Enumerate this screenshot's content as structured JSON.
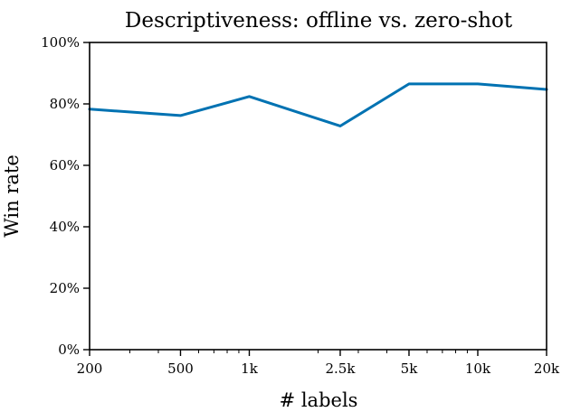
{
  "chart_data": {
    "type": "line",
    "title": "Descriptiveness: offline vs. zero-shot",
    "xlabel": "# labels",
    "ylabel": "Win rate",
    "xscale": "log",
    "x": [
      200,
      500,
      1000,
      2500,
      5000,
      10000,
      20000
    ],
    "x_tick_labels": [
      "200",
      "500",
      "1k",
      "2.5k",
      "5k",
      "10k",
      "20k"
    ],
    "xlim": [
      200,
      20000
    ],
    "ylim": [
      0,
      100
    ],
    "y_ticks": [
      0,
      20,
      40,
      60,
      80,
      100
    ],
    "y_tick_labels": [
      "0%",
      "20%",
      "40%",
      "60%",
      "80%",
      "100%"
    ],
    "grid": false,
    "series": [
      {
        "values": [
          78.3,
          76.2,
          82.4,
          72.8,
          86.5,
          86.5,
          84.7
        ],
        "color": "#0072b2"
      }
    ]
  }
}
